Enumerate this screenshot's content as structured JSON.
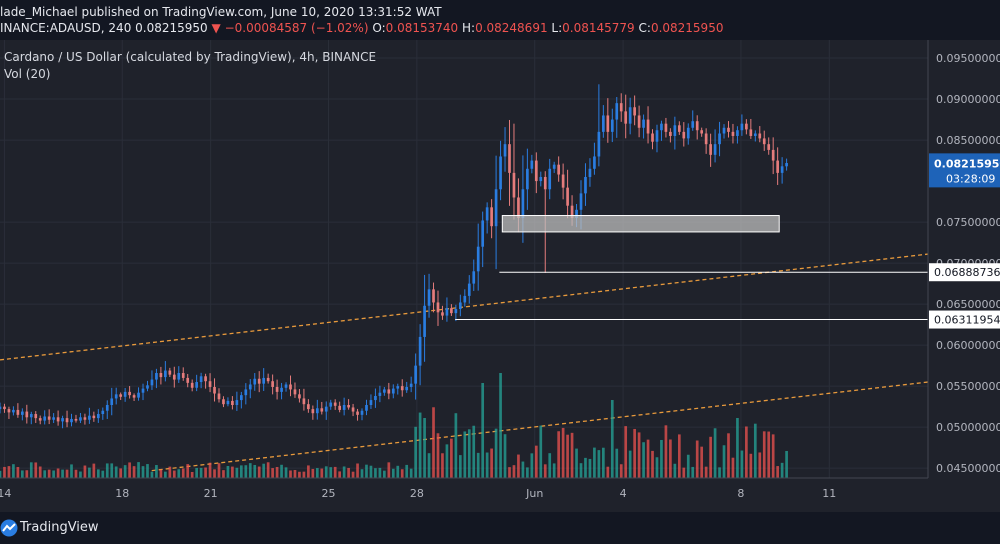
{
  "header": {
    "publisher": "lade_Michael published on TradingView.com, June 10, 2020 13:31:52 WAT",
    "symbol": "INANCE:ADAUSD, 240",
    "last": "0.08215950",
    "arrow": "▼",
    "change": "−0.00084587 (−1.02%)",
    "o_label": "O:",
    "o_value": "0.08153740",
    "h_label": "H:",
    "h_value": "0.08248691",
    "l_label": "L:",
    "l_value": "0.08145779",
    "c_label": "C:",
    "c_value": "0.08215950"
  },
  "legend": {
    "title": "Cardano / US Dollar (calculated by TradingView), 4h, BINANCE",
    "volume": "Vol (20)"
  },
  "footer": {
    "brand": "TradingView"
  },
  "colors": {
    "up": "#2a7de1",
    "down": "#e57c7c",
    "vol_up": "#26a69a",
    "vol_down": "#ef5350",
    "trend": "#e89a3c",
    "zone": "#bdbdbd",
    "price_tag": "#1e63b8"
  },
  "chart_data": {
    "type": "candlestick",
    "y_axis_ticks": [
      "0.09500000",
      "0.09000000",
      "0.08500000",
      "0.08215950",
      "0.07500000",
      "0.07000000",
      "0.06888736",
      "0.06500000",
      "0.06311954",
      "0.06000000",
      "0.05500000",
      "0.05000000",
      "0.04500000"
    ],
    "y_tick_values": [
      0.095,
      0.09,
      0.085,
      0.075,
      0.07,
      0.065,
      0.06,
      0.055,
      0.05,
      0.045
    ],
    "y_tick_labels": [
      "0.09500000",
      "0.09000000",
      "0.08500000",
      "0.07500000",
      "0.07000000",
      "0.06500000",
      "0.06000000",
      "0.05500000",
      "0.05000000",
      "0.04500000"
    ],
    "ylim": [
      0.0438,
      0.0972
    ],
    "x_ticks": [
      {
        "label": "14",
        "day": 14
      },
      {
        "label": "18",
        "day": 18
      },
      {
        "label": "21",
        "day": 21
      },
      {
        "label": "25",
        "day": 25
      },
      {
        "label": "28",
        "day": 28
      },
      {
        "label": "Jun",
        "day": 32
      },
      {
        "label": "4",
        "day": 35
      },
      {
        "label": "8",
        "day": 39
      },
      {
        "label": "11",
        "day": 42
      }
    ],
    "xlim_day": [
      13.85,
      45.35
    ],
    "current_price": {
      "value": 0.0821595,
      "label": "0.08215950",
      "countdown": "03:28:09"
    },
    "horizontal_levels": [
      {
        "value": 0.06888736,
        "label": "0.06888736",
        "from_day": 30.8
      },
      {
        "value": 0.06311954,
        "label": "0.06311954",
        "from_day": 29.3
      }
    ],
    "zone": {
      "from_day": 30.9,
      "to_day": 40.3,
      "low": 0.0738,
      "high": 0.0758
    },
    "trendlines": [
      {
        "from": [
          13.85,
          0.0582
        ],
        "to": [
          45.35,
          0.0711
        ]
      },
      {
        "from": [
          19.0,
          0.0447
        ],
        "to": [
          45.35,
          0.0555
        ]
      }
    ],
    "closes": [
      0.0525,
      0.0522,
      0.0518,
      0.0521,
      0.0515,
      0.0519,
      0.0512,
      0.0516,
      0.0511,
      0.0508,
      0.0513,
      0.0509,
      0.0512,
      0.0507,
      0.0511,
      0.0506,
      0.051,
      0.0508,
      0.0512,
      0.0509,
      0.0514,
      0.0511,
      0.0516,
      0.052,
      0.0527,
      0.0535,
      0.054,
      0.0537,
      0.0543,
      0.0539,
      0.0536,
      0.0542,
      0.0547,
      0.0551,
      0.0558,
      0.0566,
      0.0561,
      0.0569,
      0.0564,
      0.0558,
      0.0566,
      0.056,
      0.0554,
      0.0548,
      0.0555,
      0.0562,
      0.0556,
      0.0549,
      0.0541,
      0.0534,
      0.0528,
      0.0532,
      0.0527,
      0.0533,
      0.0539,
      0.0546,
      0.0552,
      0.0559,
      0.0553,
      0.056,
      0.0556,
      0.0549,
      0.0543,
      0.0548,
      0.0552,
      0.0546,
      0.054,
      0.0535,
      0.0528,
      0.0522,
      0.0517,
      0.0523,
      0.0519,
      0.0525,
      0.053,
      0.0526,
      0.0521,
      0.0527,
      0.0524,
      0.0519,
      0.0515,
      0.052,
      0.0527,
      0.0533,
      0.0538,
      0.0542,
      0.0546,
      0.0541,
      0.0547,
      0.055,
      0.0545,
      0.0549,
      0.0553,
      0.0575,
      0.061,
      0.0648,
      0.0668,
      0.0652,
      0.064,
      0.0636,
      0.0645,
      0.0639,
      0.0644,
      0.0652,
      0.066,
      0.0675,
      0.069,
      0.072,
      0.0752,
      0.0768,
      0.0745,
      0.079,
      0.083,
      0.0845,
      0.081,
      0.078,
      0.0755,
      0.079,
      0.0815,
      0.0825,
      0.08,
      0.0805,
      0.079,
      0.0815,
      0.082,
      0.0808,
      0.0792,
      0.077,
      0.0755,
      0.0765,
      0.0785,
      0.0805,
      0.0815,
      0.083,
      0.086,
      0.088,
      0.086,
      0.0875,
      0.0895,
      0.0885,
      0.087,
      0.089,
      0.088,
      0.0865,
      0.0875,
      0.0858,
      0.0848,
      0.0862,
      0.087,
      0.086,
      0.0855,
      0.0868,
      0.086,
      0.0852,
      0.0865,
      0.0873,
      0.0862,
      0.0858,
      0.0845,
      0.0832,
      0.0845,
      0.0858,
      0.0865,
      0.086,
      0.0855,
      0.0862,
      0.087,
      0.0863,
      0.0855,
      0.0858,
      0.0852,
      0.0845,
      0.0838,
      0.0825,
      0.081,
      0.0818,
      0.0822
    ]
  }
}
